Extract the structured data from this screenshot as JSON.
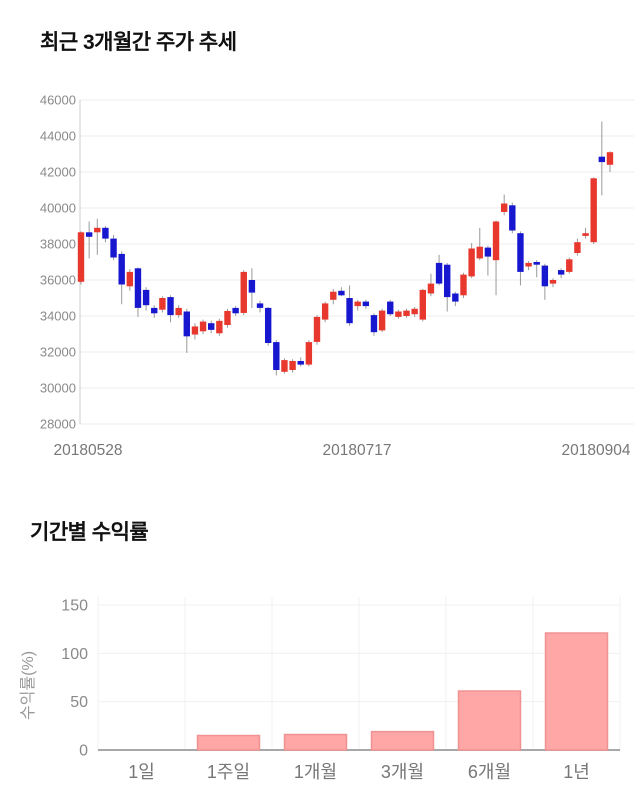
{
  "section1": {
    "title": "최근 3개월간 주가 추세"
  },
  "section2": {
    "title": "기간별 수익률"
  },
  "chart_data": [
    {
      "type": "candlestick",
      "title": "최근 3개월간 주가 추세",
      "x_tick_labels": [
        "20180528",
        "20180717",
        "20180904"
      ],
      "y_ticks": [
        46000,
        44000,
        42000,
        40000,
        38000,
        36000,
        34000,
        32000,
        30000,
        28000
      ],
      "ylim": [
        28000,
        46000
      ],
      "grid": true,
      "colors": {
        "up_body": "#e8372d",
        "down_body": "#1717cf",
        "wick": "#999999",
        "grid_line": "#ececec",
        "axis_line": "#cccccc",
        "tick_text": "#8a8a8a",
        "date_text": "#777777"
      },
      "ohlc_order": [
        "open",
        "high",
        "low",
        "close"
      ],
      "candles": [
        [
          35900,
          38700,
          35750,
          38650
        ],
        [
          38650,
          39250,
          37200,
          38400
        ],
        [
          38650,
          39400,
          37400,
          38900
        ],
        [
          38900,
          39000,
          38100,
          38300
        ],
        [
          38300,
          38500,
          37100,
          37250
        ],
        [
          37450,
          37600,
          34650,
          35750
        ],
        [
          35650,
          36600,
          35400,
          36450
        ],
        [
          36650,
          36700,
          33950,
          34450
        ],
        [
          35450,
          35600,
          34300,
          34600
        ],
        [
          34450,
          34600,
          33900,
          34150
        ],
        [
          34350,
          35100,
          34200,
          35000
        ],
        [
          35050,
          35150,
          33650,
          34050
        ],
        [
          34050,
          34600,
          33900,
          34450
        ],
        [
          34250,
          34400,
          31950,
          32870
        ],
        [
          32970,
          33600,
          32700,
          33420
        ],
        [
          33150,
          33800,
          33000,
          33690
        ],
        [
          33600,
          33750,
          33050,
          33230
        ],
        [
          33040,
          33850,
          32900,
          33730
        ],
        [
          33500,
          34400,
          33350,
          34280
        ],
        [
          34450,
          34550,
          34000,
          34150
        ],
        [
          34170,
          36550,
          34050,
          36450
        ],
        [
          36000,
          36650,
          34450,
          35300
        ],
        [
          34700,
          34850,
          34200,
          34450
        ],
        [
          34450,
          34500,
          32350,
          32500
        ],
        [
          32550,
          32650,
          30700,
          31000
        ],
        [
          30900,
          31650,
          30800,
          31550
        ],
        [
          31000,
          31600,
          30850,
          31500
        ],
        [
          31500,
          31700,
          31200,
          31300
        ],
        [
          31300,
          32650,
          31200,
          32550
        ],
        [
          32560,
          34050,
          32400,
          33950
        ],
        [
          33800,
          34800,
          33650,
          34700
        ],
        [
          34900,
          35500,
          34650,
          35350
        ],
        [
          35400,
          35600,
          35100,
          35150
        ],
        [
          35000,
          35700,
          33450,
          33600
        ],
        [
          34550,
          34900,
          34300,
          34800
        ],
        [
          34800,
          34900,
          34400,
          34550
        ],
        [
          34050,
          34150,
          32900,
          33100
        ],
        [
          33200,
          34400,
          33100,
          34300
        ],
        [
          34800,
          34900,
          34000,
          34100
        ],
        [
          33950,
          34350,
          33850,
          34250
        ],
        [
          34000,
          34400,
          33900,
          34300
        ],
        [
          34100,
          34500,
          33950,
          34400
        ],
        [
          33800,
          35500,
          33700,
          35450
        ],
        [
          35250,
          36350,
          35100,
          35800
        ],
        [
          36950,
          37400,
          35700,
          35800
        ],
        [
          36850,
          36950,
          34250,
          35050
        ],
        [
          35250,
          35350,
          34550,
          34800
        ],
        [
          35150,
          36400,
          35000,
          36300
        ],
        [
          36200,
          38050,
          36100,
          37750
        ],
        [
          37200,
          38900,
          37100,
          37850
        ],
        [
          37800,
          37900,
          36250,
          37300
        ],
        [
          37100,
          39300,
          35150,
          39250
        ],
        [
          39780,
          40750,
          39600,
          40250
        ],
        [
          40150,
          40300,
          38600,
          38750
        ],
        [
          38600,
          38700,
          35700,
          36450
        ],
        [
          36750,
          37050,
          36550,
          36950
        ],
        [
          37000,
          37100,
          36150,
          36850
        ],
        [
          36800,
          36900,
          34900,
          35650
        ],
        [
          35800,
          36100,
          35600,
          36000
        ],
        [
          36550,
          36650,
          36100,
          36300
        ],
        [
          36450,
          37250,
          36350,
          37150
        ],
        [
          37500,
          38300,
          37350,
          38100
        ],
        [
          38450,
          38900,
          38300,
          38600
        ],
        [
          38100,
          41700,
          38000,
          41650
        ],
        [
          42850,
          44800,
          40700,
          42550
        ],
        [
          42400,
          43150,
          42000,
          43100
        ]
      ]
    },
    {
      "type": "bar",
      "title": "기간별 수익률",
      "categories": [
        "1일",
        "1주일",
        "1개월",
        "3개월",
        "6개월",
        "1년"
      ],
      "values": [
        0,
        15,
        16,
        19,
        61,
        121
      ],
      "ylabel": "수익률(%)",
      "y_ticks": [
        0,
        50,
        100,
        150
      ],
      "ylim": [
        0,
        150
      ],
      "grid": true,
      "colors": {
        "bar_fill": "#ffa6a6",
        "bar_stroke": "#ef9292",
        "grid_line": "#f0f0f0",
        "axis_line": "#a8a8a8",
        "tick_text": "#8a8a8a",
        "category_text": "#777777",
        "ylabel_text": "#999999"
      }
    }
  ]
}
